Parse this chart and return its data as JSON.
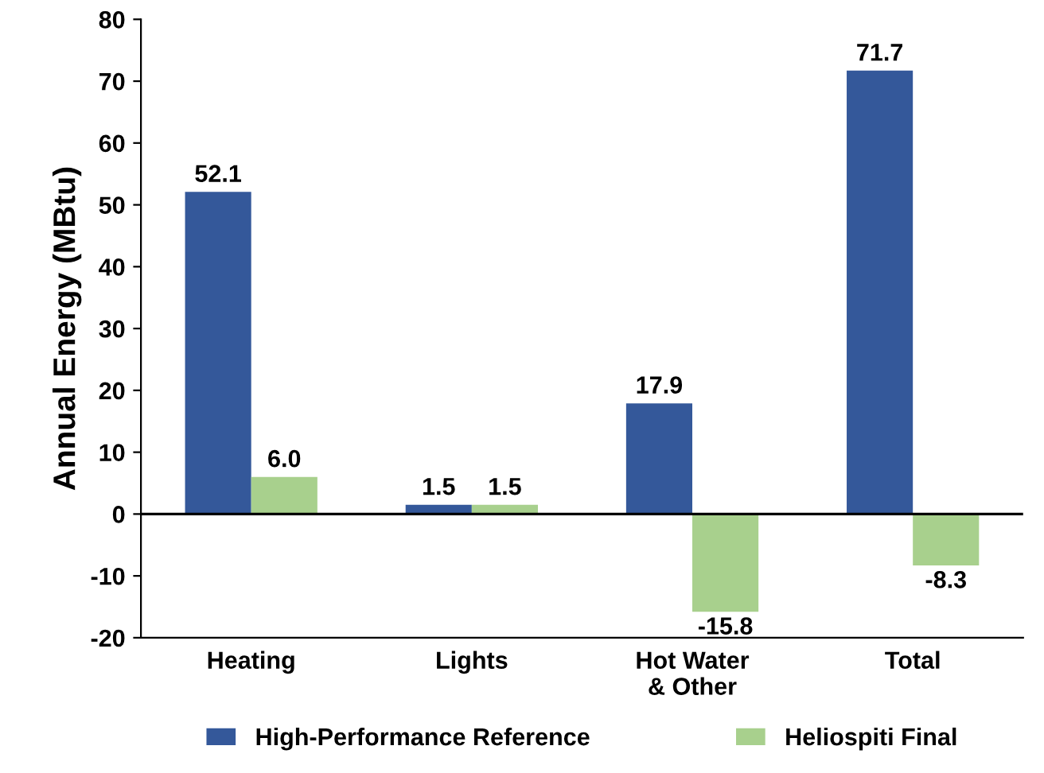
{
  "chart_data": {
    "type": "bar",
    "ylabel": "Annual Energy (MBtu)",
    "categories": [
      "Heating",
      "Lights",
      "Hot Water\n& Other",
      "Total"
    ],
    "series": [
      {
        "name": "High-Performance Reference",
        "color": "#34589a",
        "values": [
          52.1,
          1.5,
          17.9,
          71.7
        ],
        "value_labels": [
          "52.1",
          "1.5",
          "17.9",
          "71.7"
        ]
      },
      {
        "name": "Heliospiti Final",
        "color": "#a8d08d",
        "values": [
          6.0,
          1.5,
          -15.8,
          -8.3
        ],
        "value_labels": [
          "6.0",
          "1.5",
          "-15.8",
          "-8.3"
        ]
      }
    ],
    "ylim": [
      -20,
      80
    ],
    "yticks": [
      -20,
      -10,
      0,
      10,
      20,
      30,
      40,
      50,
      60,
      70,
      80
    ],
    "ref_lines": [
      {
        "axis": "y",
        "value": 0,
        "color": "#000000"
      }
    ],
    "grid": false,
    "legend": "bottom"
  }
}
